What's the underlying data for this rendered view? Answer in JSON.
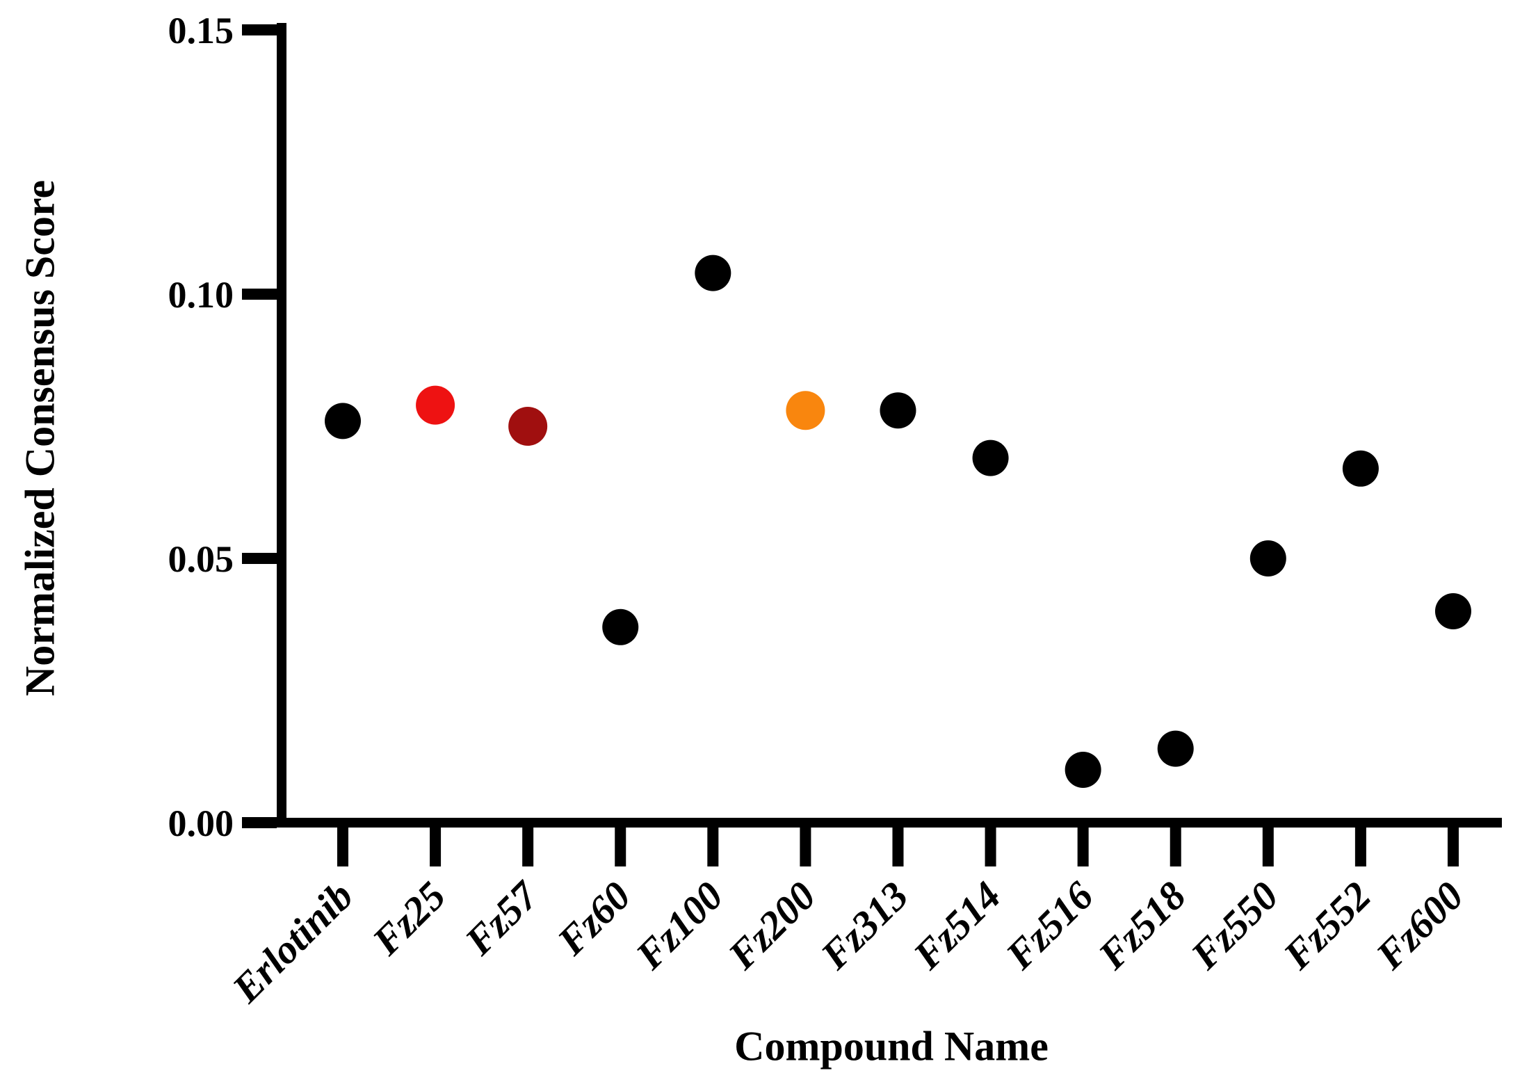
{
  "figure": {
    "background": "#FFFFFF"
  },
  "chart_data": {
    "type": "scatter",
    "title": "",
    "xlabel": "Compound Name",
    "ylabel": "Normalized Consensus Score",
    "ylim": [
      0.0,
      0.15
    ],
    "yticks": [
      0.0,
      0.05,
      0.1,
      0.15
    ],
    "ytick_labels": [
      "0.00",
      "0.05",
      "0.10",
      "0.15"
    ],
    "grid": false,
    "legend": false,
    "axis_color": "#000000",
    "default_point_color": "#000000",
    "categories": [
      "Erlotinib",
      "Fz25",
      "Fz57",
      "Fz60",
      "Fz100",
      "Fz200",
      "Fz313",
      "Fz514",
      "Fz516",
      "Fz518",
      "Fz550",
      "Fz552",
      "Fz600"
    ],
    "points": [
      {
        "label": "Erlotinib",
        "value": 0.076,
        "color": "#000000"
      },
      {
        "label": "Fz25",
        "value": 0.079,
        "color": "#EE1212"
      },
      {
        "label": "Fz57",
        "value": 0.075,
        "color": "#A00F0F"
      },
      {
        "label": "Fz60",
        "value": 0.037,
        "color": "#000000"
      },
      {
        "label": "Fz100",
        "value": 0.104,
        "color": "#000000"
      },
      {
        "label": "Fz200",
        "value": 0.078,
        "color": "#F9860E"
      },
      {
        "label": "Fz313",
        "value": 0.078,
        "color": "#000000"
      },
      {
        "label": "Fz514",
        "value": 0.069,
        "color": "#000000"
      },
      {
        "label": "Fz516",
        "value": 0.01,
        "color": "#000000"
      },
      {
        "label": "Fz518",
        "value": 0.014,
        "color": "#000000"
      },
      {
        "label": "Fz550",
        "value": 0.05,
        "color": "#000000"
      },
      {
        "label": "Fz552",
        "value": 0.067,
        "color": "#000000"
      },
      {
        "label": "Fz600",
        "value": 0.04,
        "color": "#000000"
      }
    ]
  }
}
